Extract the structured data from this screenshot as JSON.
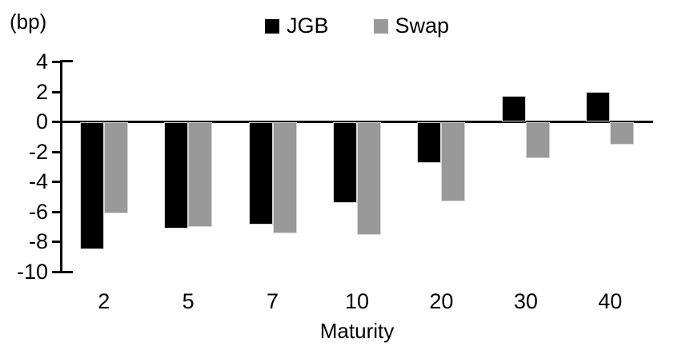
{
  "chart_data": {
    "type": "bar",
    "title": "",
    "unit_label": "(bp)",
    "xlabel": "Maturity",
    "ylabel": "",
    "categories": [
      "2",
      "5",
      "7",
      "10",
      "20",
      "30",
      "40"
    ],
    "series": [
      {
        "name": "JGB",
        "color": "#000000",
        "values": [
          -8.5,
          -7.1,
          -6.8,
          -5.4,
          -2.7,
          1.7,
          2.0
        ]
      },
      {
        "name": "Swap",
        "color": "#999999",
        "values": [
          -6.1,
          -7.0,
          -7.4,
          -7.5,
          -5.3,
          -2.4,
          -1.5
        ]
      }
    ],
    "ylim": [
      -10,
      4
    ],
    "yticks": [
      4,
      2,
      0,
      -2,
      -4,
      -6,
      -8,
      -10
    ],
    "grid": false,
    "legend_position": "top-center",
    "baseline": 0
  }
}
